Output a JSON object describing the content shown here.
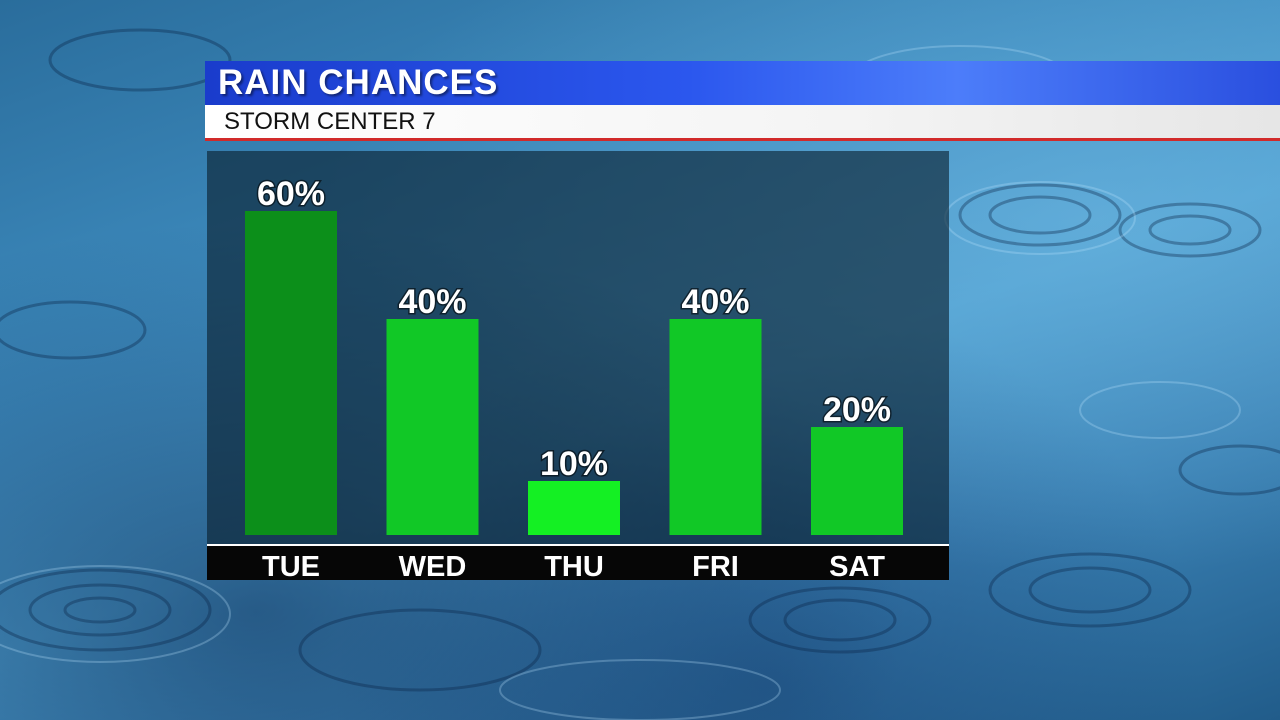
{
  "header": {
    "title": "RAIN CHANCES",
    "subtitle": "STORM CENTER 7"
  },
  "colors": {
    "title_band": "#2b57ee",
    "subtitle_band": "#ffffff",
    "accent_line": "#d12a2a",
    "bar_dark": "#0c8f1a",
    "bar_mid": "#11c826",
    "bar_bright": "#14f023"
  },
  "chart_data": {
    "type": "bar",
    "title": "RAIN CHANCES",
    "categories": [
      "TUE",
      "WED",
      "THU",
      "FRI",
      "SAT"
    ],
    "values": [
      60,
      40,
      10,
      40,
      20
    ],
    "value_labels": [
      "60%",
      "40%",
      "10%",
      "40%",
      "20%"
    ],
    "unit": "%",
    "ylim": [
      0,
      70
    ],
    "grid": false,
    "legend": "none"
  }
}
